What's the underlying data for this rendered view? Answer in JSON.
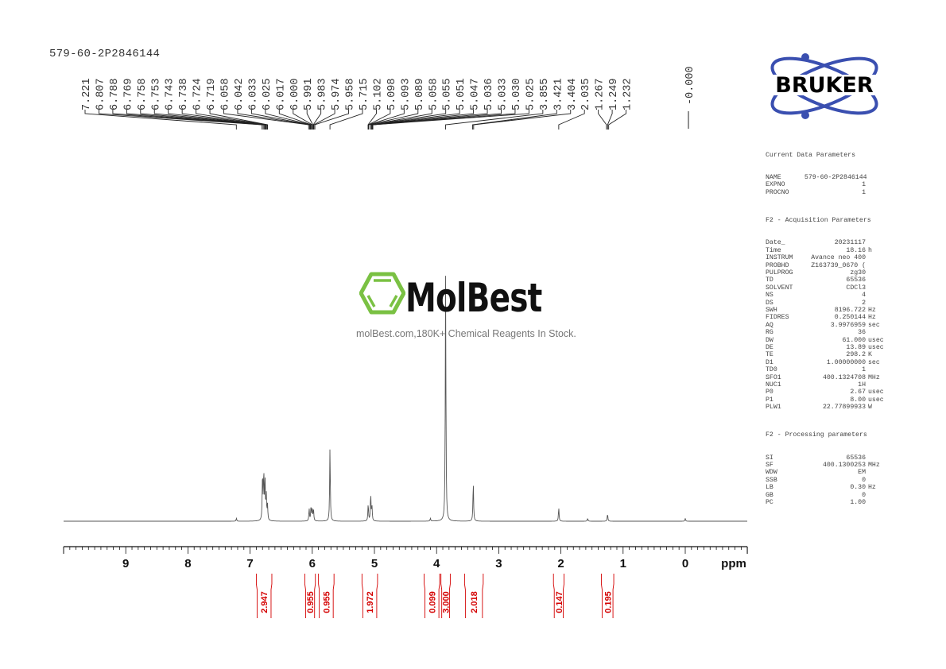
{
  "sample_id": "579-60-2P2846144",
  "logo_bruker": "BRUKER",
  "watermark": {
    "name": "MolBest",
    "tagline": "molBest.com,180K+ Chemical Reagents In Stock.",
    "color": "#7ac143"
  },
  "parameters": {
    "current": {
      "title": "Current Data Parameters",
      "rows": [
        {
          "k": "NAME",
          "v": "579-60-2P2846144",
          "u": ""
        },
        {
          "k": "EXPNO",
          "v": "1",
          "u": ""
        },
        {
          "k": "PROCNO",
          "v": "1",
          "u": ""
        }
      ]
    },
    "acquisition": {
      "title": "F2 - Acquisition Parameters",
      "rows": [
        {
          "k": "Date_",
          "v": "20231117",
          "u": ""
        },
        {
          "k": "Time",
          "v": "18.16",
          "u": "h"
        },
        {
          "k": "INSTRUM",
          "v": "Avance neo 400",
          "u": ""
        },
        {
          "k": "PROBHD",
          "v": "Z163739_0670 (",
          "u": ""
        },
        {
          "k": "PULPROG",
          "v": "zg30",
          "u": ""
        },
        {
          "k": "TD",
          "v": "65536",
          "u": ""
        },
        {
          "k": "SOLVENT",
          "v": "CDCl3",
          "u": ""
        },
        {
          "k": "NS",
          "v": "4",
          "u": ""
        },
        {
          "k": "DS",
          "v": "2",
          "u": ""
        },
        {
          "k": "SWH",
          "v": "8196.722",
          "u": "Hz"
        },
        {
          "k": "FIDRES",
          "v": "0.250144",
          "u": "Hz"
        },
        {
          "k": "AQ",
          "v": "3.9976959",
          "u": "sec"
        },
        {
          "k": "RG",
          "v": "36",
          "u": ""
        },
        {
          "k": "DW",
          "v": "61.000",
          "u": "usec"
        },
        {
          "k": "DE",
          "v": "13.89",
          "u": "usec"
        },
        {
          "k": "TE",
          "v": "298.2",
          "u": "K"
        },
        {
          "k": "D1",
          "v": "1.00000000",
          "u": "sec"
        },
        {
          "k": "TD0",
          "v": "1",
          "u": ""
        },
        {
          "k": "SFO1",
          "v": "400.1324708",
          "u": "MHz"
        },
        {
          "k": "NUC1",
          "v": "1H",
          "u": ""
        },
        {
          "k": "P0",
          "v": "2.67",
          "u": "usec"
        },
        {
          "k": "P1",
          "v": "8.00",
          "u": "usec"
        },
        {
          "k": "PLW1",
          "v": "22.77899933",
          "u": "W"
        }
      ]
    },
    "processing": {
      "title": "F2 - Processing parameters",
      "rows": [
        {
          "k": "SI",
          "v": "65536",
          "u": ""
        },
        {
          "k": "SF",
          "v": "400.1300253",
          "u": "MHz"
        },
        {
          "k": "WDW",
          "v": "EM",
          "u": ""
        },
        {
          "k": "SSB",
          "v": "0",
          "u": ""
        },
        {
          "k": "LB",
          "v": "0.30",
          "u": "Hz"
        },
        {
          "k": "GB",
          "v": "0",
          "u": ""
        },
        {
          "k": "PC",
          "v": "1.00",
          "u": ""
        }
      ]
    }
  },
  "chart_data": {
    "type": "line",
    "title": "579-60-2P2846144",
    "xlabel": "ppm",
    "ylabel": "",
    "xlim": [
      10.0,
      -1.0
    ],
    "x_ticks": [
      9,
      8,
      7,
      6,
      5,
      4,
      3,
      2,
      1,
      0
    ],
    "grid": false,
    "peak_labels": [
      "7.221",
      "6.807",
      "6.788",
      "6.769",
      "6.758",
      "6.753",
      "6.743",
      "6.738",
      "6.724",
      "6.719",
      "6.058",
      "6.042",
      "6.033",
      "6.025",
      "6.017",
      "6.000",
      "5.991",
      "5.983",
      "5.974",
      "5.958",
      "5.715",
      "5.102",
      "5.098",
      "5.093",
      "5.089",
      "5.058",
      "5.055",
      "5.051",
      "5.047",
      "5.036",
      "5.033",
      "5.030",
      "5.025",
      "3.855",
      "3.421",
      "3.404",
      "2.035",
      "1.267",
      "1.249",
      "1.232",
      "-0.000"
    ],
    "peaks": [
      {
        "ppm": 7.22,
        "height": 0.012
      },
      {
        "ppm": 6.8,
        "height": 0.19
      },
      {
        "ppm": 6.78,
        "height": 0.19
      },
      {
        "ppm": 6.76,
        "height": 0.16
      },
      {
        "ppm": 6.74,
        "height": 0.1
      },
      {
        "ppm": 6.72,
        "height": 0.06
      },
      {
        "ppm": 6.05,
        "height": 0.05
      },
      {
        "ppm": 6.02,
        "height": 0.06
      },
      {
        "ppm": 6.0,
        "height": 0.05
      },
      {
        "ppm": 5.98,
        "height": 0.045
      },
      {
        "ppm": 5.715,
        "height": 0.3
      },
      {
        "ppm": 5.1,
        "height": 0.07
      },
      {
        "ppm": 5.06,
        "height": 0.11
      },
      {
        "ppm": 5.04,
        "height": 0.06
      },
      {
        "ppm": 4.1,
        "height": 0.012
      },
      {
        "ppm": 3.855,
        "height": 1.0
      },
      {
        "ppm": 3.41,
        "height": 0.16
      },
      {
        "ppm": 2.035,
        "height": 0.055
      },
      {
        "ppm": 1.57,
        "height": 0.012
      },
      {
        "ppm": 1.25,
        "height": 0.03
      },
      {
        "ppm": 0.0,
        "height": 0.012
      }
    ],
    "integrals": [
      {
        "range": [
          6.9,
          6.65
        ],
        "value": "2.947"
      },
      {
        "range": [
          6.12,
          5.95
        ],
        "value": "0.955"
      },
      {
        "range": [
          5.9,
          5.65
        ],
        "value": "0.955"
      },
      {
        "range": [
          5.2,
          4.95
        ],
        "value": "1.972"
      },
      {
        "range": [
          4.2,
          3.95
        ],
        "value": "0.099"
      },
      {
        "range": [
          3.93,
          3.78
        ],
        "value": "3.000"
      },
      {
        "range": [
          3.55,
          3.25
        ],
        "value": "2.018"
      },
      {
        "range": [
          2.12,
          1.95
        ],
        "value": "0.147"
      },
      {
        "range": [
          1.35,
          1.15
        ],
        "value": "0.195"
      }
    ]
  }
}
